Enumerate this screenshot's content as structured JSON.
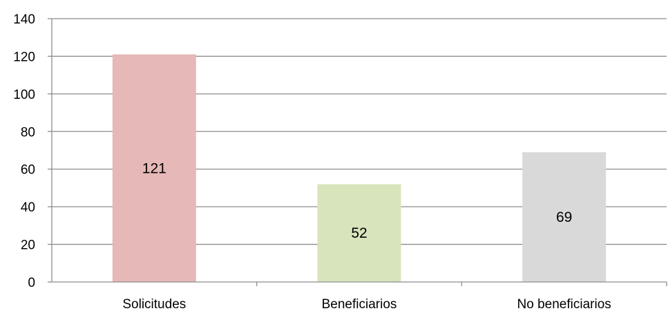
{
  "chart_data": {
    "type": "bar",
    "categories": [
      "Solicitudes",
      "Beneficiarios",
      "No beneficiarios"
    ],
    "values": [
      121,
      52,
      69
    ],
    "data_labels": [
      "121",
      "52",
      "69"
    ],
    "colors": [
      "#E6B8B7",
      "#D8E4BC",
      "#D9D9D9"
    ],
    "ylim": [
      0,
      140
    ],
    "yticks": [
      0,
      20,
      40,
      60,
      80,
      100,
      120,
      140
    ],
    "ytick_labels": [
      "0",
      "20",
      "40",
      "60",
      "80",
      "100",
      "120",
      "140"
    ],
    "grid": true,
    "gridline_color": "#8C8C8C",
    "legend": "none"
  }
}
